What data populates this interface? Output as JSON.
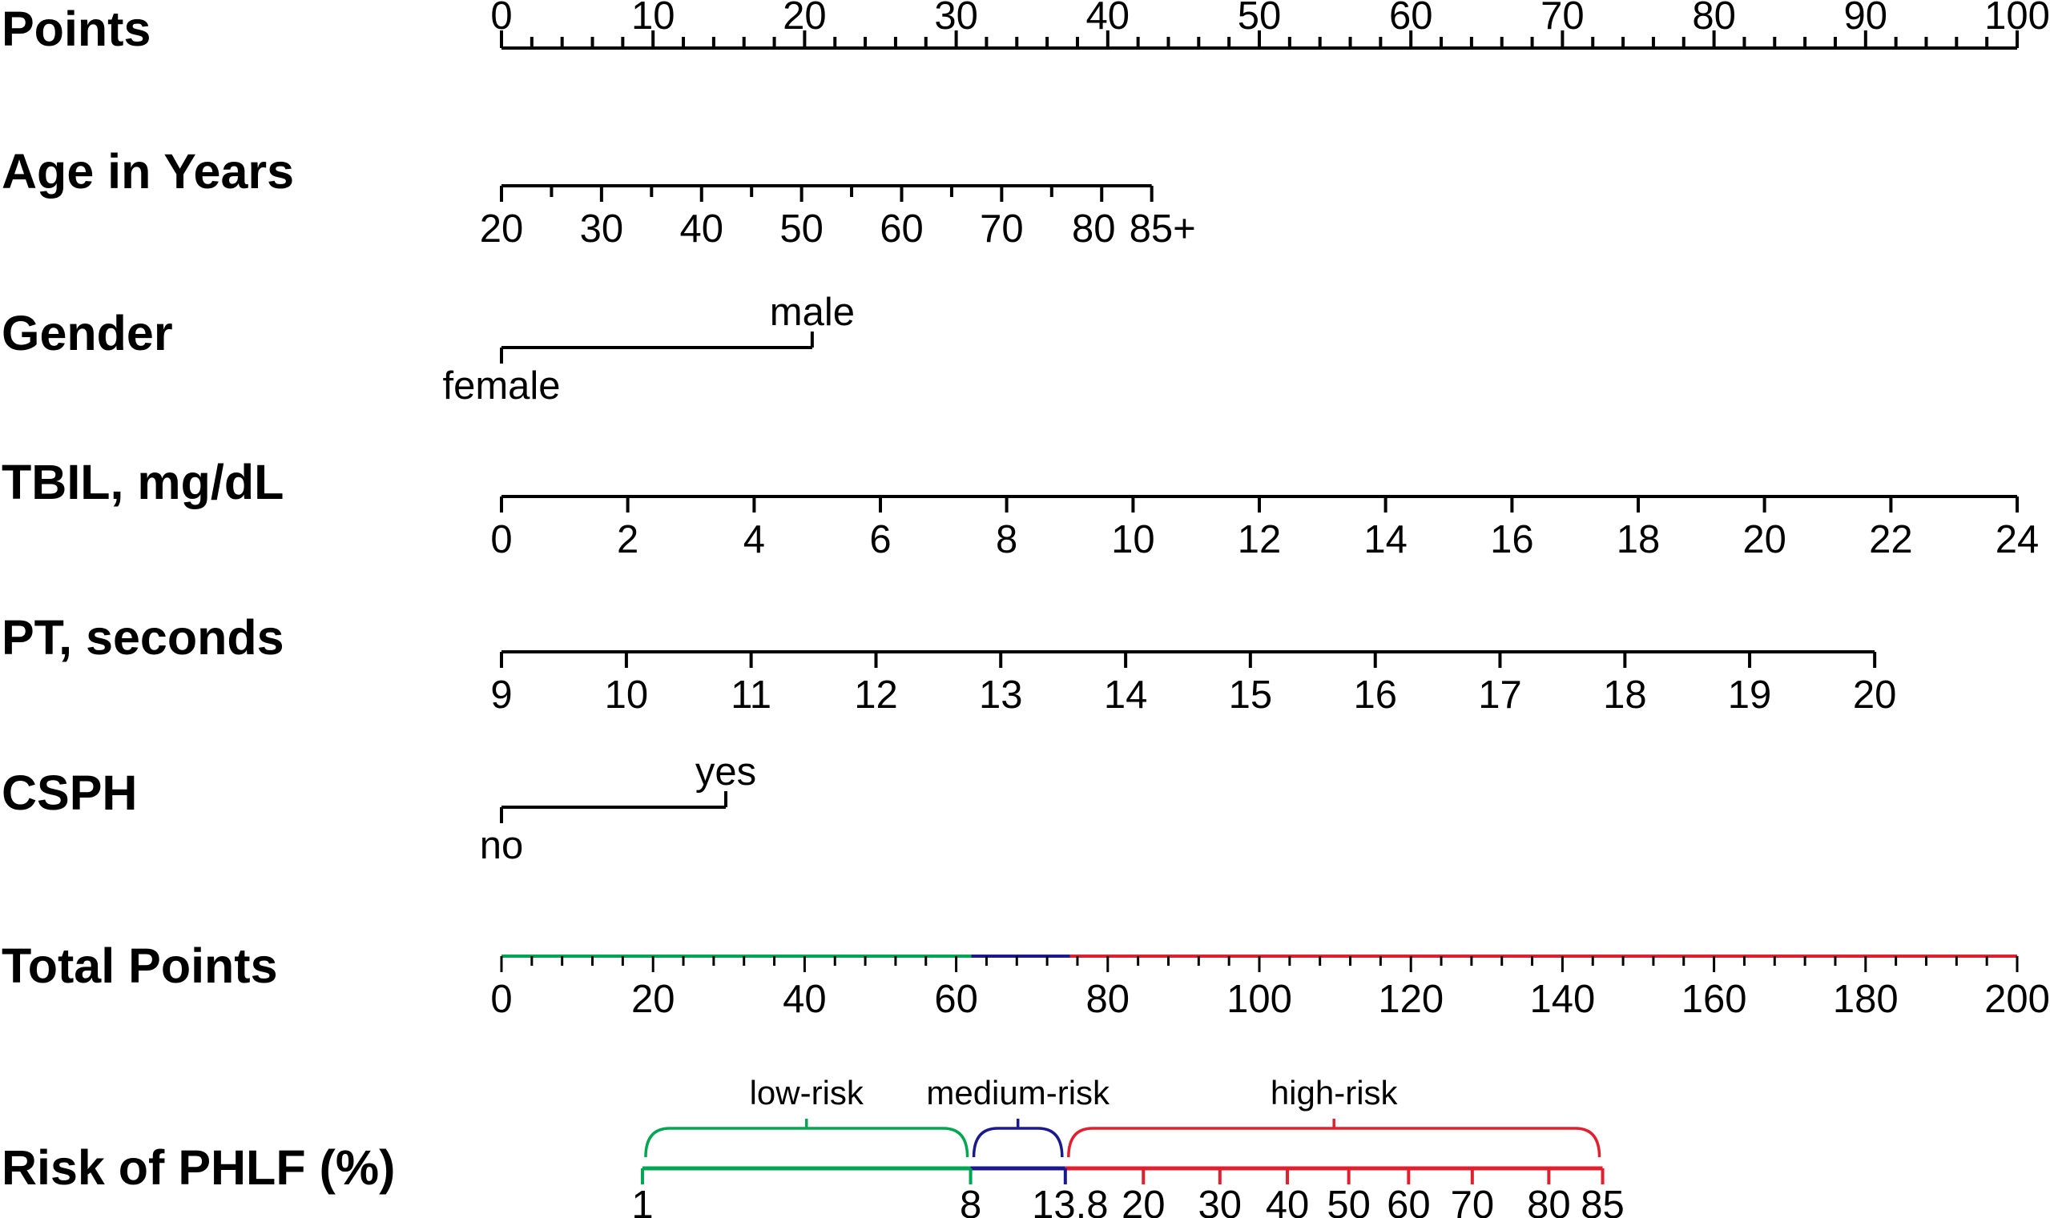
{
  "chart_data": {
    "type": "nomogram",
    "points_scale": {
      "label": "Points",
      "min": 0,
      "max": 100,
      "ticks": [
        0,
        10,
        20,
        30,
        40,
        50,
        60,
        70,
        80,
        90,
        100
      ],
      "minor_step": 2
    },
    "variables": [
      {
        "label": "Age in Years",
        "kind": "continuous",
        "ticks": [
          "20",
          "30",
          "40",
          "50",
          "60",
          "70",
          "80",
          "85+"
        ],
        "tick_points": [
          0,
          6.6,
          13.2,
          19.8,
          26.4,
          33.0,
          39.6,
          42.9
        ],
        "minor_points": [
          3.3,
          9.9,
          16.5,
          23.1,
          29.7,
          36.3
        ],
        "label_side": "below"
      },
      {
        "label": "Gender",
        "kind": "categorical",
        "levels": [
          {
            "name": "female",
            "points": 0,
            "label_side": "below"
          },
          {
            "name": "male",
            "points": 20.5,
            "label_side": "above"
          }
        ]
      },
      {
        "label": "TBIL, mg/dL",
        "kind": "continuous",
        "ticks": [
          "0",
          "2",
          "4",
          "6",
          "8",
          "10",
          "12",
          "14",
          "16",
          "18",
          "20",
          "22",
          "24"
        ],
        "tick_points": [
          0,
          8.33,
          16.67,
          25,
          33.33,
          41.67,
          50,
          58.33,
          66.67,
          75,
          83.33,
          91.67,
          100
        ],
        "label_side": "below"
      },
      {
        "label": "PT, seconds",
        "kind": "continuous",
        "ticks": [
          "9",
          "10",
          "11",
          "12",
          "13",
          "14",
          "15",
          "16",
          "17",
          "18",
          "19",
          "20"
        ],
        "tick_points": [
          0,
          8.24,
          16.47,
          24.71,
          32.94,
          41.18,
          49.41,
          57.65,
          65.88,
          74.12,
          82.35,
          90.6
        ],
        "label_side": "below"
      },
      {
        "label": "CSPH",
        "kind": "categorical",
        "levels": [
          {
            "name": "no",
            "points": 0,
            "label_side": "below"
          },
          {
            "name": "yes",
            "points": 14.8,
            "label_side": "above"
          }
        ]
      }
    ],
    "total_points": {
      "label": "Total Points",
      "min": 0,
      "max": 200,
      "ticks": [
        0,
        20,
        40,
        60,
        80,
        100,
        120,
        140,
        160,
        180,
        200
      ],
      "minor_step": 4,
      "segments": [
        {
          "from": 0,
          "to": 62,
          "risk": "low-risk"
        },
        {
          "from": 62,
          "to": 75,
          "risk": "medium-risk"
        },
        {
          "from": 75,
          "to": 200,
          "risk": "high-risk"
        }
      ]
    },
    "risk": {
      "label": "Risk of PHLF (%)",
      "ticks": [
        "1",
        "8",
        "13.8",
        "20",
        "30",
        "40",
        "50",
        "60",
        "70",
        "80",
        "85"
      ],
      "tick_total_points": [
        18.6,
        61.9,
        74.4,
        84.7,
        94.8,
        103.7,
        111.8,
        119.7,
        128.1,
        138.2,
        145.3
      ],
      "groups": [
        {
          "name": "low-risk",
          "from": 18.6,
          "to": 61.9,
          "color": "#00a651"
        },
        {
          "name": "medium-risk",
          "from": 61.9,
          "to": 74.4,
          "color": "#1a1a8e"
        },
        {
          "name": "high-risk",
          "from": 74.4,
          "to": 145.3,
          "color": "#e0202e"
        }
      ]
    },
    "colors": {
      "axis": "#000000",
      "low": "#00a651",
      "medium": "#1a1a8e",
      "high": "#e0202e"
    }
  }
}
